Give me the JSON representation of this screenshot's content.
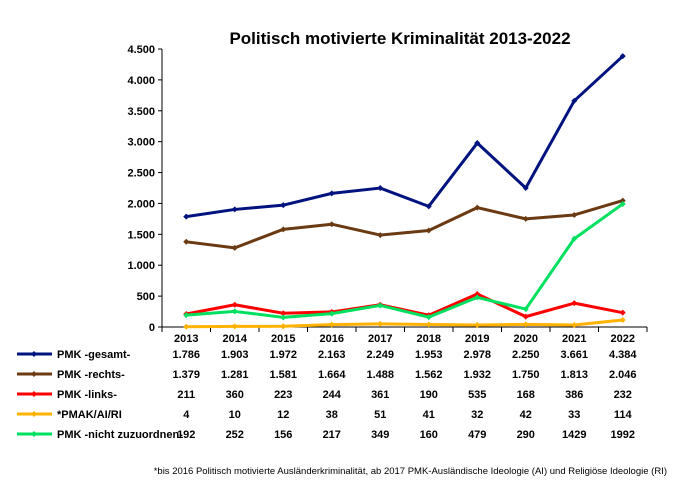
{
  "chart_data": {
    "type": "line",
    "title": "Politisch motivierte Kriminalität 2013-2022",
    "categories": [
      "2013",
      "2014",
      "2015",
      "2016",
      "2017",
      "2018",
      "2019",
      "2020",
      "2021",
      "2022"
    ],
    "ylim": [
      0,
      4500
    ],
    "yticks": [
      0,
      500,
      1000,
      1500,
      2000,
      2500,
      3000,
      3500,
      4000,
      4500
    ],
    "ytick_labels": [
      "0",
      "500",
      "1.000",
      "1.500",
      "2.000",
      "2.500",
      "3.000",
      "3.500",
      "4.000",
      "4.500"
    ],
    "grid": false,
    "legend": "data-table-below",
    "series": [
      {
        "name": "PMK -gesamt-",
        "color": "#00137F",
        "values": [
          1786,
          1903,
          1972,
          2163,
          2249,
          1953,
          2978,
          2250,
          3661,
          4384
        ],
        "labels": [
          "1.786",
          "1.903",
          "1.972",
          "2.163",
          "2.249",
          "1.953",
          "2.978",
          "2.250",
          "3.661",
          "4.384"
        ]
      },
      {
        "name": "PMK -rechts-",
        "color": "#6B3A12",
        "values": [
          1379,
          1281,
          1581,
          1664,
          1488,
          1562,
          1932,
          1750,
          1813,
          2046
        ],
        "labels": [
          "1.379",
          "1.281",
          "1.581",
          "1.664",
          "1.488",
          "1.562",
          "1.932",
          "1.750",
          "1.813",
          "2.046"
        ]
      },
      {
        "name": "PMK -links-",
        "color": "#FF0000",
        "values": [
          211,
          360,
          223,
          244,
          361,
          190,
          535,
          168,
          386,
          232
        ],
        "labels": [
          "211",
          "360",
          "223",
          "244",
          "361",
          "190",
          "535",
          "168",
          "386",
          "232"
        ]
      },
      {
        "name": "*PMAK/AI/RI",
        "color": "#FFB300",
        "values": [
          4,
          10,
          12,
          38,
          51,
          41,
          32,
          42,
          33,
          114
        ],
        "labels": [
          "4",
          "10",
          "12",
          "38",
          "51",
          "41",
          "32",
          "42",
          "33",
          "114"
        ]
      },
      {
        "name": "PMK -nicht zuzuordnen-",
        "display_name": "PMK -nicht zuzuordnen-",
        "color": "#00E060",
        "values": [
          192,
          252,
          156,
          217,
          349,
          160,
          479,
          290,
          1429,
          1992
        ],
        "labels": [
          "192",
          "252",
          "156",
          "217",
          "349",
          "160",
          "479",
          "290",
          "1429",
          "1992"
        ]
      }
    ],
    "footnote": "*bis 2016 Politisch motivierte Ausländerkriminalität, ab 2017 PMK-Ausländische Ideologie (AI) und Religiöse Ideologie (RI)"
  }
}
